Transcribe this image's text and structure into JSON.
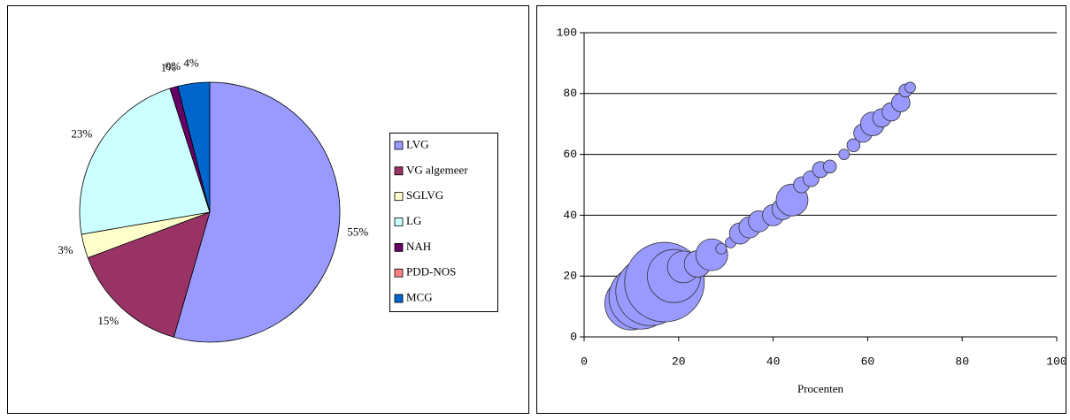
{
  "chart_data": [
    {
      "type": "pie",
      "categories": [
        "LVG",
        "VG algemeer",
        "SGLVG",
        "LG",
        "NAH",
        "PDD-NOS",
        "MCG"
      ],
      "values": [
        55,
        15,
        3,
        23,
        1,
        0,
        4
      ],
      "value_labels": [
        "55%",
        "15%",
        "3%",
        "23%",
        "1%",
        "0%",
        "4%"
      ],
      "colors": [
        "#9999ff",
        "#993366",
        "#ffffcc",
        "#ccffff",
        "#660066",
        "#ff8080",
        "#0066cc"
      ],
      "legend": "right"
    },
    {
      "type": "bubble",
      "xlabel": "Procenten",
      "x": [
        7,
        10,
        12,
        14,
        17,
        19,
        21,
        24,
        27,
        29,
        31,
        33,
        35,
        37,
        40,
        42,
        44,
        46,
        48,
        50,
        52,
        55,
        57,
        59,
        61,
        63,
        65,
        67,
        68,
        69
      ],
      "values": [
        6.5,
        11,
        13,
        15,
        18,
        20,
        23,
        24,
        27,
        29,
        31,
        34,
        36,
        38,
        40,
        42,
        45,
        50,
        52,
        55,
        56,
        60,
        63,
        67,
        70,
        72,
        74,
        77,
        81,
        82
      ],
      "sizes": [
        4,
        100,
        144,
        169,
        225,
        100,
        36,
        25,
        36,
        4,
        4,
        16,
        16,
        16,
        16,
        16,
        36,
        9,
        9,
        9,
        6,
        4,
        6,
        12,
        20,
        12,
        12,
        12,
        6,
        4
      ],
      "color": "#9999ff",
      "xlim": [
        0,
        100
      ],
      "xticks": [
        0,
        20,
        40,
        60,
        80,
        100
      ],
      "ylim": [
        0,
        100
      ],
      "yticks": [
        0,
        20,
        40,
        60,
        80,
        100
      ],
      "grid": true
    }
  ]
}
